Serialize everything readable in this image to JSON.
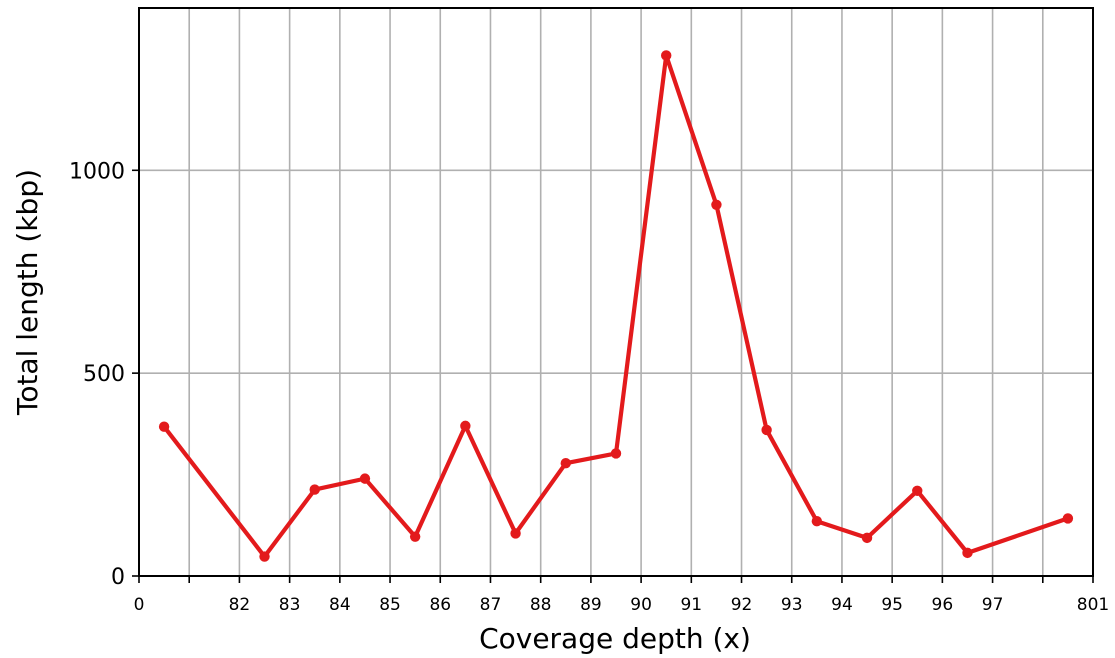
{
  "chart_data": {
    "type": "line",
    "title": "",
    "xlabel": "Coverage depth (x)",
    "ylabel": "Total length (kbp)",
    "xlim": [
      0,
      19
    ],
    "ylim": [
      0,
      1400
    ],
    "x_tick_positions": [
      0,
      2,
      3,
      4,
      5,
      6,
      7,
      8,
      9,
      10,
      11,
      12,
      13,
      14,
      15,
      16,
      17,
      19
    ],
    "x_tick_labels": [
      "0",
      "82",
      "83",
      "84",
      "85",
      "86",
      "87",
      "88",
      "89",
      "90",
      "91",
      "92",
      "93",
      "94",
      "95",
      "96",
      "97",
      "801"
    ],
    "x_minor_ticks": [
      1,
      18
    ],
    "x_grid": [
      1,
      2,
      3,
      4,
      5,
      6,
      7,
      8,
      9,
      10,
      11,
      12,
      13,
      14,
      15,
      16,
      17,
      18
    ],
    "y_ticks": [
      0,
      500,
      1000
    ],
    "grid": true,
    "series": [
      {
        "name": "",
        "color": "#e31a1c",
        "x": [
          0.5,
          2.5,
          3.5,
          4.5,
          5.5,
          6.5,
          7.5,
          8.5,
          9.5,
          10.5,
          11.5,
          12.5,
          13.5,
          14.5,
          15.5,
          16.5,
          18.5
        ],
        "values": [
          368,
          48,
          213,
          240,
          97,
          370,
          105,
          278,
          302,
          1283,
          915,
          360,
          135,
          94,
          210,
          57,
          142
        ]
      }
    ]
  }
}
